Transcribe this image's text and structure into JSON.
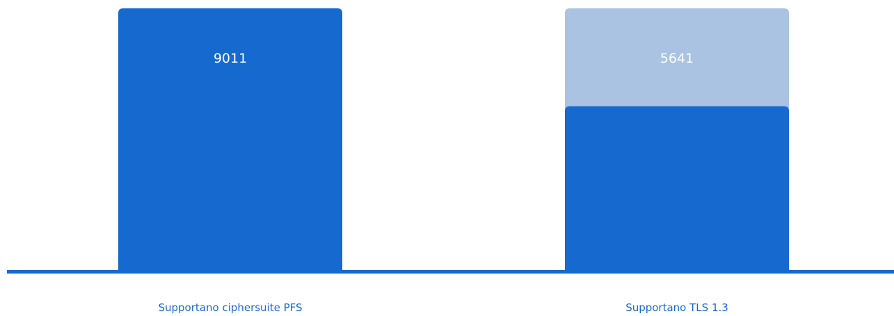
{
  "chart_data": {
    "type": "bar",
    "categories": [
      "Supportano ciphersuite PFS",
      "Supportano TLS 1.3"
    ],
    "series": [
      {
        "values": [
          9011,
          5641
        ],
        "value_labels": [
          "9011",
          "5641"
        ]
      }
    ],
    "reference_total": 9011,
    "ylim": [
      0,
      9011
    ],
    "grid": false,
    "legend": "none",
    "colors": {
      "bar": "#1669cf",
      "bar_remainder": "#abc3e2",
      "baseline": "#1669cf",
      "value_label": "#ffffff",
      "category_label": "#1669cf"
    }
  }
}
